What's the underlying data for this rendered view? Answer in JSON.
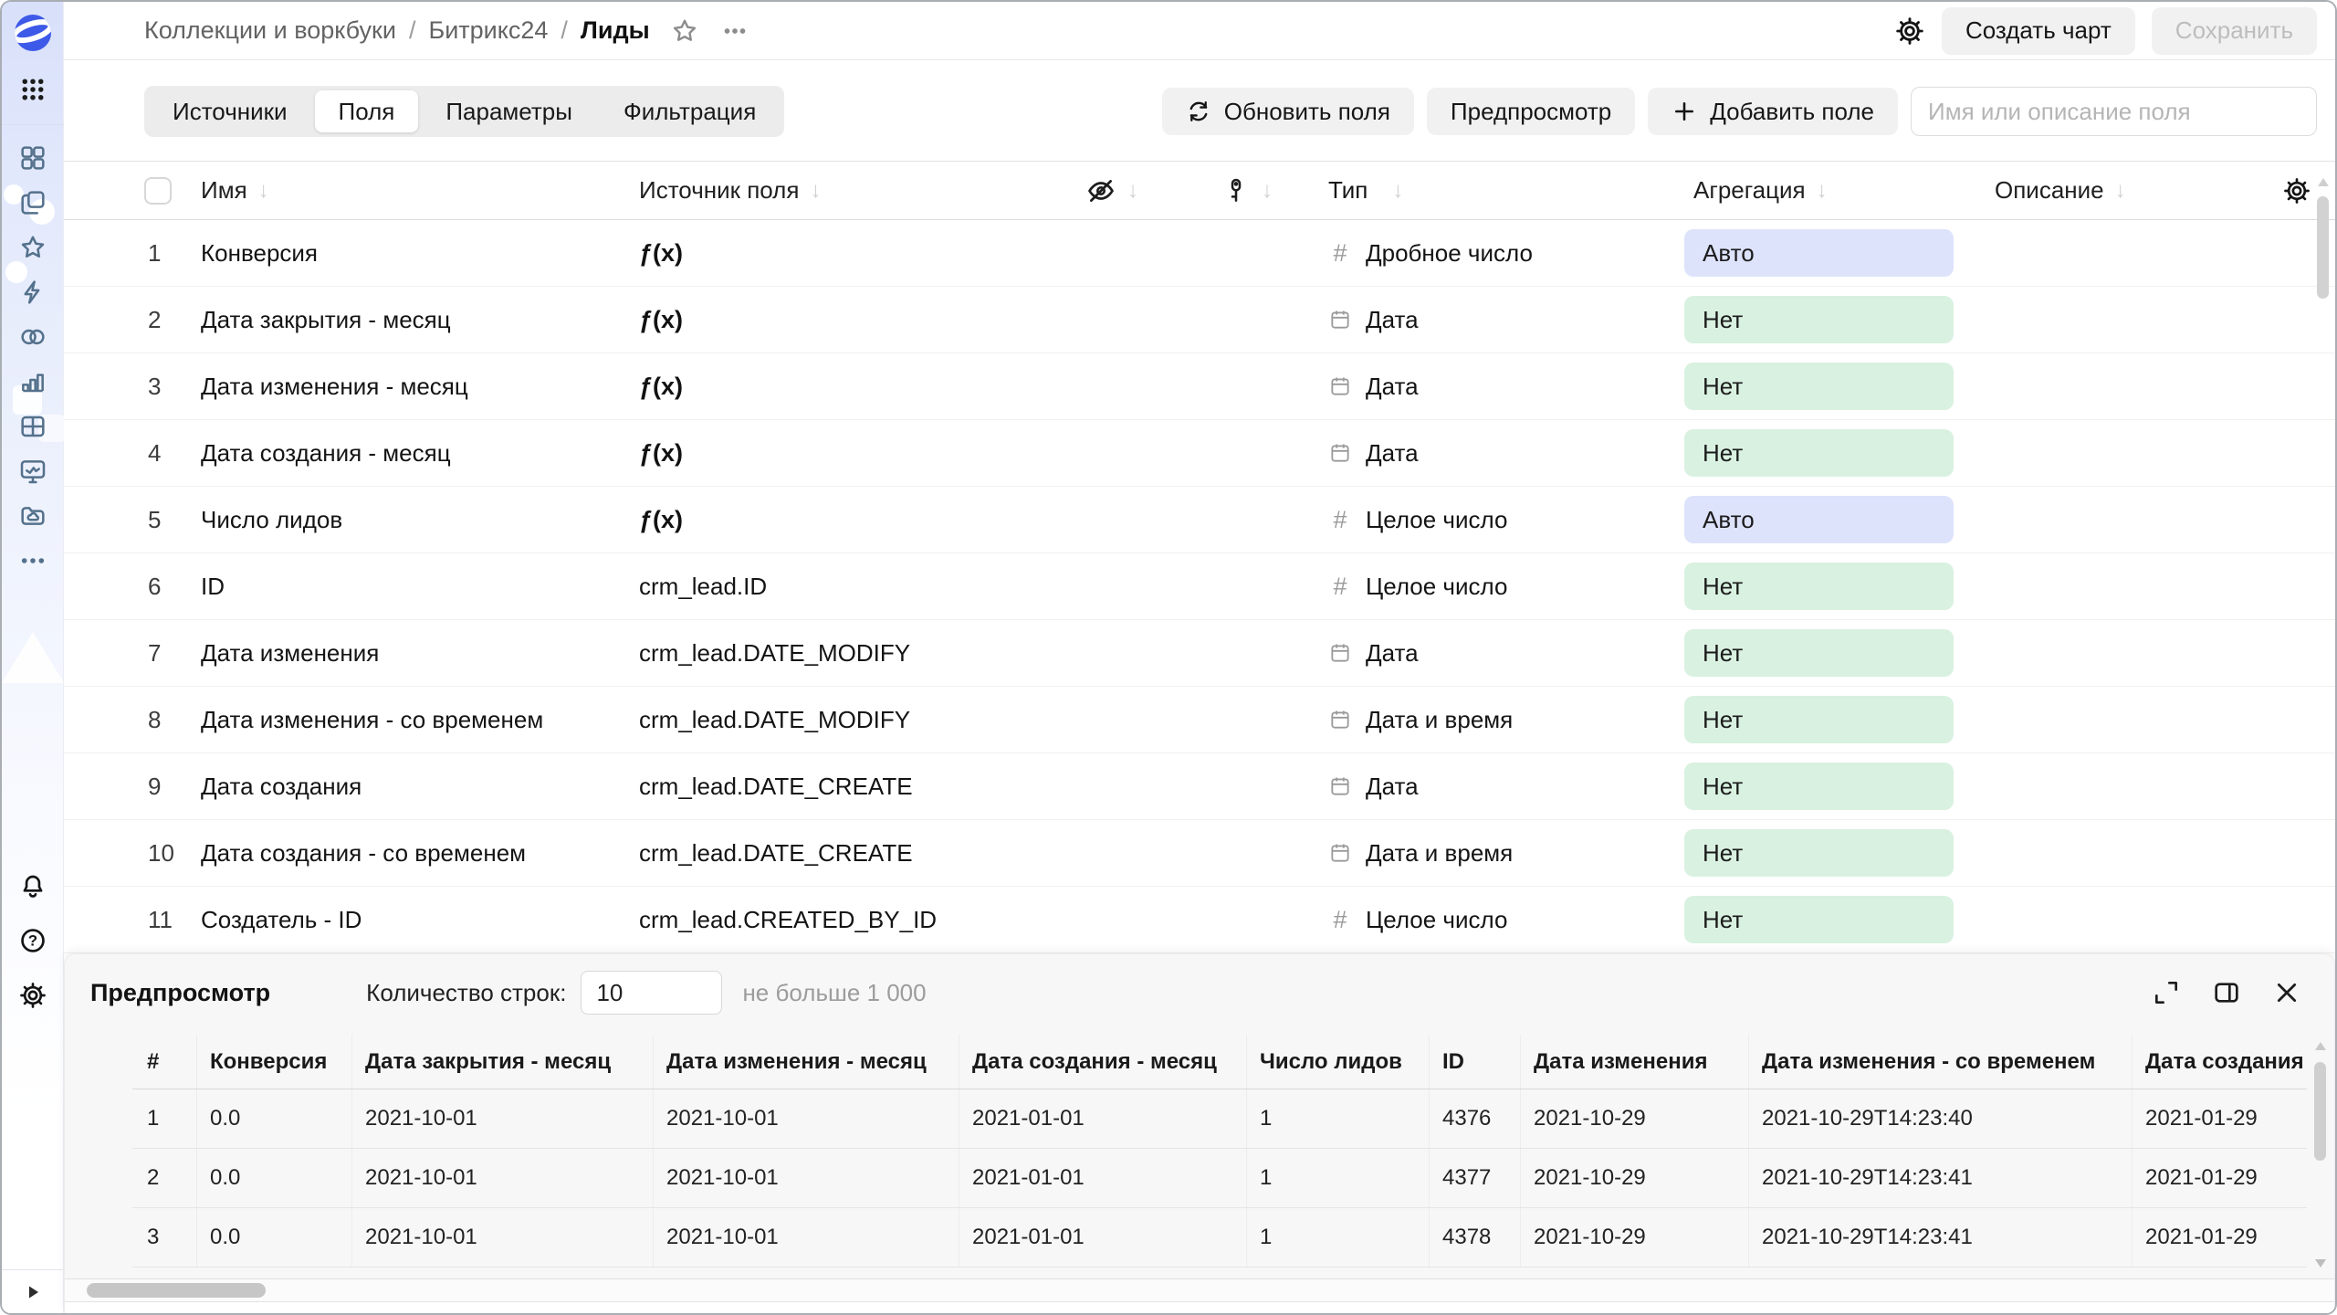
{
  "header": {
    "breadcrumb": [
      "Коллекции и воркбуки",
      "Битрикс24",
      "Лиды"
    ],
    "separator": "/",
    "create_chart_label": "Создать чарт",
    "save_label": "Сохранить"
  },
  "toolbar": {
    "tabs": {
      "sources": "Источники",
      "fields": "Поля",
      "parameters": "Параметры",
      "filtering": "Фильтрация"
    },
    "refresh_fields_label": "Обновить поля",
    "preview_label": "Предпросмотр",
    "add_field_label": "Добавить поле",
    "search_placeholder": "Имя или описание поля"
  },
  "fields_table": {
    "columns": {
      "name": "Имя",
      "source": "Источник поля",
      "type": "Тип",
      "aggregation": "Агрегация",
      "description": "Описание"
    },
    "sort_glyph": "↓",
    "formula_label": "ƒ(x)",
    "rows": [
      {
        "num": "1",
        "name": "Конверсия",
        "formula": true,
        "source": "",
        "type": "Дробное число",
        "type_kind": "number",
        "agg": "Авто",
        "agg_kind": "auto"
      },
      {
        "num": "2",
        "name": "Дата закрытия - месяц",
        "formula": true,
        "source": "",
        "type": "Дата",
        "type_kind": "date",
        "agg": "Нет",
        "agg_kind": "none"
      },
      {
        "num": "3",
        "name": "Дата изменения - месяц",
        "formula": true,
        "source": "",
        "type": "Дата",
        "type_kind": "date",
        "agg": "Нет",
        "agg_kind": "none"
      },
      {
        "num": "4",
        "name": "Дата создания - месяц",
        "formula": true,
        "source": "",
        "type": "Дата",
        "type_kind": "date",
        "agg": "Нет",
        "agg_kind": "none"
      },
      {
        "num": "5",
        "name": "Число лидов",
        "formula": true,
        "source": "",
        "type": "Целое число",
        "type_kind": "number",
        "agg": "Авто",
        "agg_kind": "auto"
      },
      {
        "num": "6",
        "name": "ID",
        "formula": false,
        "source": "crm_lead.ID",
        "type": "Целое число",
        "type_kind": "number",
        "agg": "Нет",
        "agg_kind": "none"
      },
      {
        "num": "7",
        "name": "Дата изменения",
        "formula": false,
        "source": "crm_lead.DATE_MODIFY",
        "type": "Дата",
        "type_kind": "date",
        "agg": "Нет",
        "agg_kind": "none"
      },
      {
        "num": "8",
        "name": "Дата изменения - со временем",
        "formula": false,
        "source": "crm_lead.DATE_MODIFY",
        "type": "Дата и время",
        "type_kind": "date",
        "agg": "Нет",
        "agg_kind": "none"
      },
      {
        "num": "9",
        "name": "Дата создания",
        "formula": false,
        "source": "crm_lead.DATE_CREATE",
        "type": "Дата",
        "type_kind": "date",
        "agg": "Нет",
        "agg_kind": "none"
      },
      {
        "num": "10",
        "name": "Дата создания - со временем",
        "formula": false,
        "source": "crm_lead.DATE_CREATE",
        "type": "Дата и время",
        "type_kind": "date",
        "agg": "Нет",
        "agg_kind": "none"
      },
      {
        "num": "11",
        "name": "Создатель - ID",
        "formula": false,
        "source": "crm_lead.CREATED_BY_ID",
        "type": "Целое число",
        "type_kind": "number",
        "agg": "Нет",
        "agg_kind": "none"
      }
    ]
  },
  "preview": {
    "title": "Предпросмотр",
    "row_count_label": "Количество строк:",
    "row_count_value": "10",
    "row_count_hint": "не больше 1 000",
    "columns": [
      "#",
      "Конверсия",
      "Дата закрытия - месяц",
      "Дата изменения - месяц",
      "Дата создания - месяц",
      "Число лидов",
      "ID",
      "Дата изменения",
      "Дата изменения - со временем",
      "Дата создания"
    ],
    "rows": [
      [
        "1",
        "0.0",
        "2021-10-01",
        "2021-10-01",
        "2021-01-01",
        "1",
        "4376",
        "2021-10-29",
        "2021-10-29T14:23:40",
        "2021-01-29"
      ],
      [
        "2",
        "0.0",
        "2021-10-01",
        "2021-10-01",
        "2021-01-01",
        "1",
        "4377",
        "2021-10-29",
        "2021-10-29T14:23:41",
        "2021-01-29"
      ],
      [
        "3",
        "0.0",
        "2021-10-01",
        "2021-10-01",
        "2021-01-01",
        "1",
        "4378",
        "2021-10-29",
        "2021-10-29T14:23:41",
        "2021-01-29"
      ]
    ]
  },
  "icons": {
    "sidebar": [
      "datalens-logo",
      "apps-grid",
      "objects-grid",
      "collections",
      "favorites-star",
      "connections-lightning",
      "relations-rings",
      "charts-bars",
      "datasets-table",
      "dashboards-monitor",
      "storage-cloud-folder",
      "more-dots",
      "notifications-bell",
      "help-question",
      "settings-gear",
      "collapse-sidebar"
    ],
    "topbar": [
      "favorite-star",
      "more-dots",
      "settings-gear"
    ],
    "fields_header": [
      "hidden-eye-off",
      "access-key",
      "settings-gear",
      "sort-arrows"
    ],
    "preview_header": [
      "expand",
      "panel-right",
      "close"
    ]
  },
  "colors": {
    "badge_auto_bg": "#dde3fb",
    "badge_none_bg": "#d9f1e0",
    "sidebar_icon": "#54718c",
    "logo_blue": "#3d59e8"
  }
}
